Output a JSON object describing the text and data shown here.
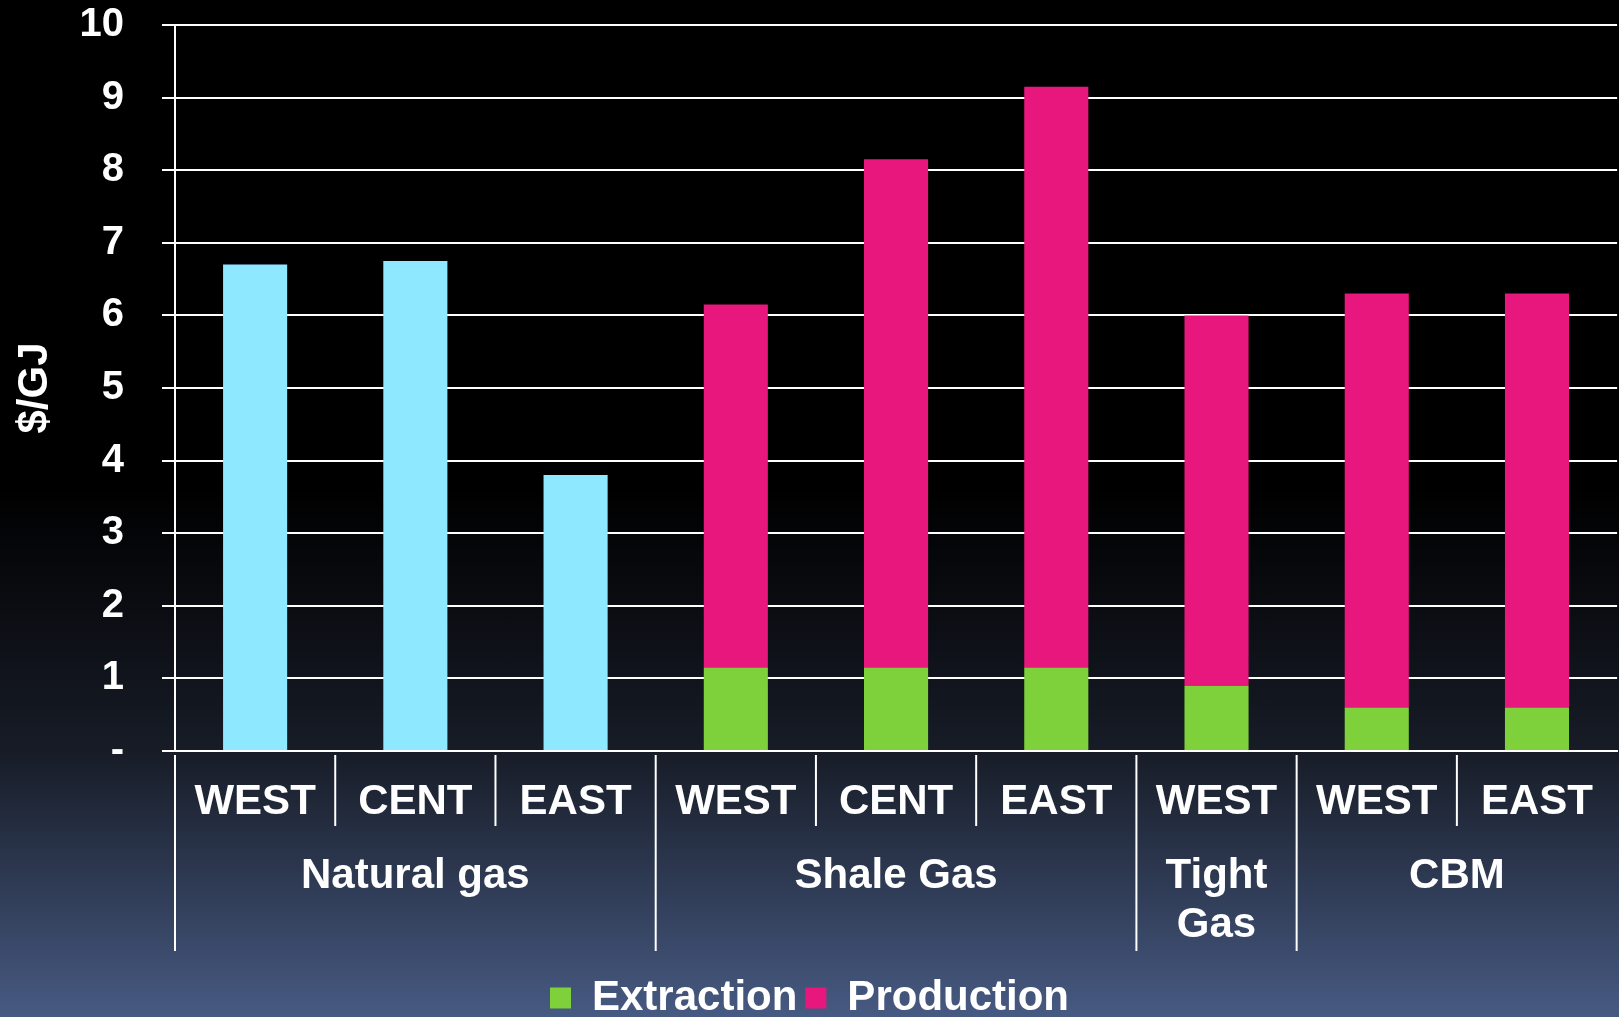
{
  "chart_data": {
    "type": "bar",
    "stacked": true,
    "ylabel": "$/GJ",
    "categories": [
      "WEST",
      "CENT",
      "EAST",
      "WEST",
      "CENT",
      "EAST",
      "WEST",
      "WEST",
      "EAST"
    ],
    "series": [
      {
        "color": "#8ee8ff",
        "values": [
          6.7,
          6.75,
          3.8,
          null,
          null,
          null,
          null,
          null,
          null
        ]
      },
      {
        "name": "Extraction",
        "color": "#7fd13b",
        "values": [
          null,
          null,
          null,
          1.15,
          1.15,
          1.15,
          0.9,
          0.6,
          0.6
        ]
      },
      {
        "name": "Production",
        "color": "#e8177d",
        "values": [
          null,
          null,
          null,
          5.0,
          7.0,
          8.0,
          5.1,
          5.7,
          5.7
        ]
      }
    ],
    "ylim": [
      0,
      10
    ],
    "yticks": [
      {
        "value": 0,
        "label": "-"
      },
      1,
      2,
      3,
      4,
      5,
      6,
      7,
      8,
      9,
      10
    ],
    "grid": "y",
    "legend": "bottom",
    "annotations": [
      "Natural gas",
      "Shale Gas",
      "Tight Gas",
      "CBM"
    ]
  }
}
